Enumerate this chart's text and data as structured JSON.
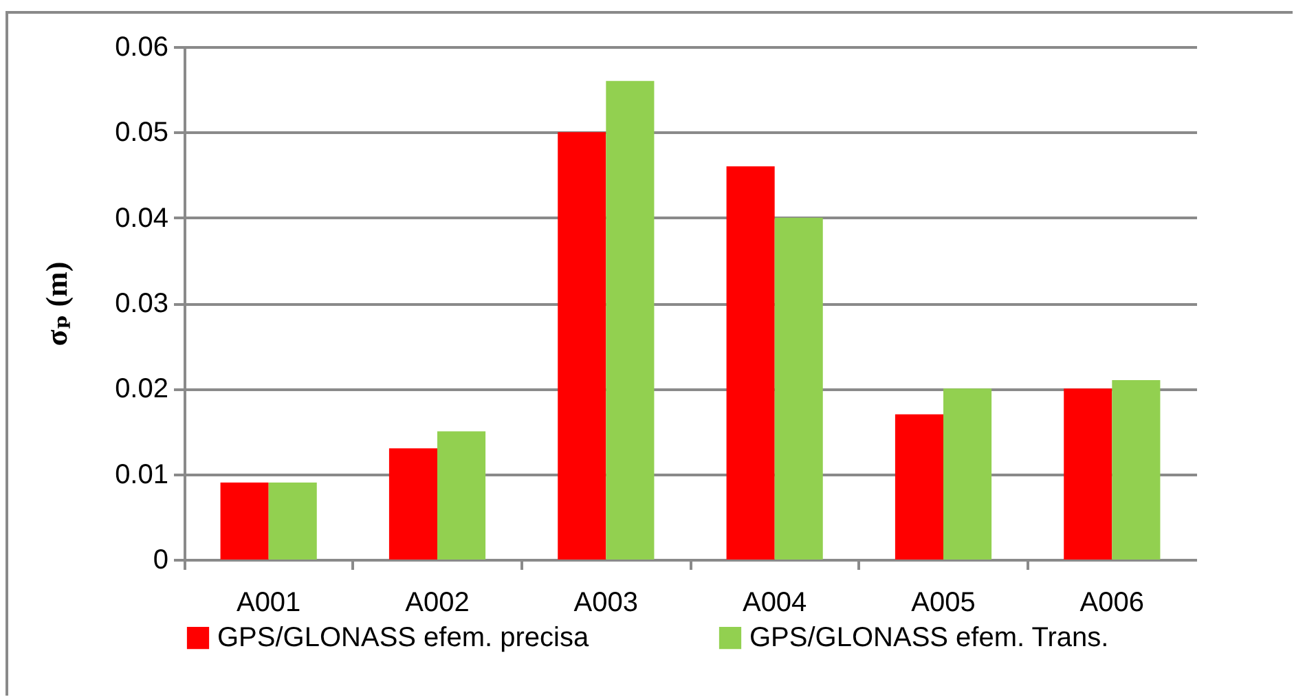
{
  "chart_data": {
    "type": "bar",
    "ylabel": "σₚ (m)",
    "categories": [
      "A001",
      "A002",
      "A003",
      "A004",
      "A005",
      "A006"
    ],
    "series": [
      {
        "name": "GPS/GLONASS efem. precisa",
        "color": "#ff0000",
        "values": [
          0.009,
          0.013,
          0.05,
          0.046,
          0.017,
          0.02
        ]
      },
      {
        "name": "GPS/GLONASS efem. Trans.",
        "color": "#92d050",
        "values": [
          0.009,
          0.015,
          0.056,
          0.04,
          0.02,
          0.021
        ]
      }
    ],
    "ylim": [
      0,
      0.06
    ],
    "yticks": [
      0,
      0.01,
      0.02,
      0.03,
      0.04,
      0.05,
      0.06
    ],
    "grid": "y",
    "legend": "bottom"
  }
}
